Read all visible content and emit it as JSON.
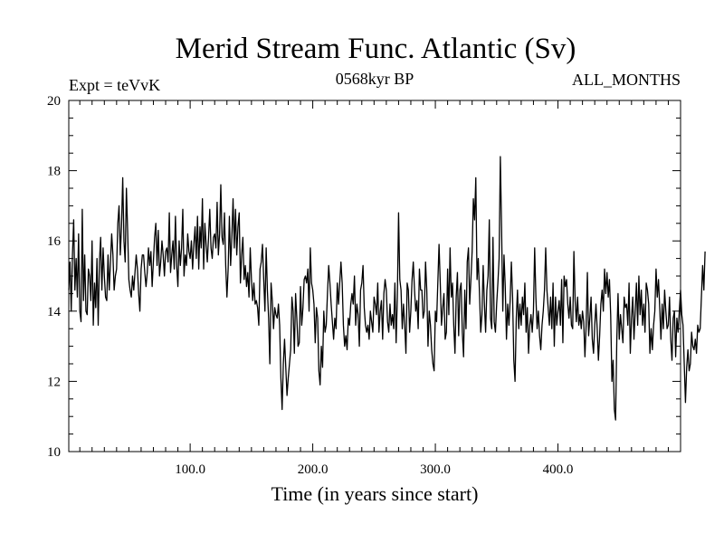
{
  "chart_data": {
    "type": "line",
    "title": "Merid Stream Func. Atlantic (Sv)",
    "header_left": "Expt = teVvK",
    "header_center": "0568kyr BP",
    "header_right": "ALL_MONTHS",
    "xlabel": "Time (in years since start)",
    "ylabel": "",
    "xlim": [
      1,
      500
    ],
    "ylim": [
      10,
      20
    ],
    "x_ticks": [
      100,
      200,
      300,
      400
    ],
    "x_tick_labels": [
      "100.0",
      "200.0",
      "300.0",
      "400.0"
    ],
    "y_ticks": [
      10,
      12,
      14,
      16,
      18,
      20
    ],
    "y_tick_labels": [
      "10",
      "12",
      "14",
      "16",
      "18",
      "20"
    ],
    "grid": false,
    "series": [
      {
        "x_start": 1,
        "x_step": 1,
        "color": "#000000",
        "values": [
          14.6,
          15.4,
          14.0,
          15.6,
          16.6,
          14.6,
          15.5,
          14.4,
          16.2,
          14.0,
          13.7,
          16.9,
          14.3,
          15.6,
          14.0,
          13.9,
          15.2,
          15.0,
          14.3,
          16.0,
          13.6,
          14.8,
          14.1,
          15.5,
          13.6,
          15.4,
          16.1,
          14.6,
          15.8,
          15.0,
          14.4,
          14.3,
          15.6,
          14.6,
          15.4,
          16.2,
          15.6,
          14.6,
          15.0,
          15.2,
          16.5,
          17.0,
          15.6,
          16.4,
          17.8,
          16.0,
          15.4,
          17.5,
          16.3,
          14.9,
          14.6,
          14.4,
          15.0,
          14.6,
          15.1,
          15.6,
          15.2,
          14.5,
          14.0,
          15.2,
          15.6,
          15.6,
          15.1,
          14.7,
          15.1,
          15.8,
          15.3,
          15.7,
          14.7,
          15.4,
          16.1,
          16.5,
          15.3,
          16.3,
          15.0,
          15.4,
          16.0,
          15.6,
          15.0,
          15.7,
          15.8,
          15.4,
          16.8,
          15.1,
          15.6,
          16.0,
          15.2,
          16.7,
          15.3,
          14.7,
          16.0,
          15.3,
          15.8,
          16.9,
          15.0,
          15.6,
          15.3,
          16.2,
          15.7,
          15.5,
          16.0,
          15.2,
          15.9,
          16.4,
          15.5,
          16.7,
          15.2,
          16.4,
          15.8,
          17.2,
          15.2,
          16.5,
          15.9,
          15.4,
          16.1,
          16.9,
          15.8,
          15.5,
          16.1,
          16.2,
          15.8,
          17.1,
          15.6,
          16.2,
          17.6,
          16.1,
          15.9,
          16.8,
          15.3,
          14.4,
          15.2,
          16.7,
          15.3,
          16.1,
          17.2,
          15.8,
          16.9,
          15.6,
          16.4,
          16.8,
          14.8,
          15.6,
          16.1,
          14.9,
          15.3,
          14.7,
          15.1,
          14.4,
          15.8,
          14.9,
          14.3,
          14.8,
          14.2,
          14.3,
          14.1,
          13.6,
          15.2,
          15.4,
          15.9,
          14.9,
          14.0,
          15.8,
          14.6,
          13.8,
          12.5,
          14.8,
          14.3,
          13.5,
          14.1,
          13.9,
          13.8,
          14.2,
          13.6,
          12.1,
          11.2,
          12.5,
          13.2,
          12.4,
          11.6,
          12.1,
          12.5,
          12.9,
          14.4,
          14.0,
          12.8,
          14.5,
          13.8,
          13.0,
          13.1,
          14.7,
          13.6,
          14.1,
          14.9,
          15.0,
          14.8,
          15.2,
          14.0,
          15.8,
          14.8,
          14.6,
          14.2,
          13.1,
          14.1,
          13.8,
          12.3,
          11.9,
          13.0,
          12.4,
          14.0,
          13.4,
          13.6,
          14.5,
          15.3,
          14.8,
          14.2,
          13.7,
          13.2,
          13.8,
          13.5,
          14.8,
          14.2,
          14.8,
          15.4,
          14.8,
          13.6,
          13.0,
          13.3,
          12.9,
          13.8,
          13.6,
          14.2,
          14.5,
          14.2,
          15.0,
          13.6,
          14.2,
          13.9,
          13.0,
          14.6,
          14.8,
          15.3,
          14.1,
          13.6,
          13.4,
          13.6,
          13.2,
          14.0,
          13.7,
          13.4,
          14.4,
          14.2,
          13.9,
          14.8,
          13.4,
          14.0,
          14.3,
          13.2,
          14.5,
          14.9,
          14.6,
          13.7,
          13.4,
          14.2,
          13.6,
          13.9,
          13.5,
          14.8,
          13.1,
          14.4,
          16.8,
          14.9,
          14.6,
          13.5,
          14.2,
          13.6,
          12.8,
          14.8,
          14.6,
          13.4,
          14.0,
          14.9,
          15.4,
          14.6,
          14.0,
          14.3,
          13.5,
          15.2,
          14.6,
          14.6,
          13.8,
          14.0,
          15.4,
          14.6,
          13.0,
          14.0,
          13.6,
          12.9,
          12.5,
          12.3,
          14.0,
          13.7,
          14.8,
          15.9,
          14.8,
          13.6,
          14.1,
          14.5,
          13.2,
          13.4,
          15.2,
          13.9,
          15.8,
          14.4,
          14.8,
          13.6,
          12.8,
          14.4,
          15.1,
          13.3,
          14.6,
          14.8,
          13.4,
          12.7,
          14.6,
          13.5,
          15.4,
          15.8,
          14.2,
          14.9,
          15.7,
          17.2,
          16.6,
          17.8,
          14.9,
          15.5,
          14.5,
          13.4,
          13.9,
          15.3,
          14.2,
          13.4,
          14.6,
          15.0,
          16.6,
          13.8,
          13.5,
          16.1,
          13.7,
          13.4,
          14.2,
          14.8,
          15.5,
          18.4,
          16.4,
          14.0,
          15.6,
          14.7,
          13.2,
          14.2,
          13.6,
          14.3,
          15.4,
          14.4,
          12.6,
          12.0,
          13.8,
          14.6,
          13.5,
          14.2,
          13.6,
          14.4,
          13.9,
          14.8,
          13.4,
          14.1,
          12.8,
          13.6,
          13.9,
          13.4,
          14.0,
          15.8,
          14.4,
          13.5,
          14.0,
          13.3,
          12.9,
          13.6,
          14.0,
          14.6,
          15.8,
          14.6,
          14.1,
          13.6,
          14.4,
          13.5,
          14.8,
          13.0,
          14.4,
          13.6,
          14.0,
          14.3,
          13.6,
          14.9,
          13.1,
          15.0,
          14.7,
          14.9,
          14.2,
          13.8,
          14.4,
          13.6,
          13.5,
          15.7,
          14.3,
          13.7,
          14.4,
          13.6,
          13.9,
          13.5,
          14.0,
          13.7,
          12.7,
          13.6,
          15.1,
          13.3,
          13.8,
          14.4,
          13.2,
          12.8,
          13.6,
          14.2,
          13.5,
          12.6,
          13.3,
          14.2,
          14.6,
          14.0,
          15.2,
          14.5,
          15.1,
          14.4,
          14.9,
          13.9,
          12.0,
          12.6,
          11.2,
          10.9,
          13.2,
          14.5,
          13.2,
          13.9,
          13.5,
          13.1,
          14.4,
          14.1,
          14.2,
          13.6,
          14.8,
          12.8,
          13.8,
          14.4,
          13.2,
          14.0,
          14.8,
          13.6,
          15.0,
          13.9,
          14.6,
          13.6,
          14.2,
          13.4,
          14.8,
          14.6,
          14.2,
          12.8,
          13.5,
          12.9,
          13.6,
          14.0,
          15.2,
          14.4,
          14.9,
          14.1,
          13.2,
          14.2,
          13.5,
          14.6,
          14.0,
          13.5,
          13.6,
          14.4,
          13.2,
          12.6,
          13.8,
          14.0,
          12.7,
          13.8,
          13.4,
          14.0,
          14.6,
          13.9,
          13.6,
          12.5,
          11.4,
          12.4,
          12.9,
          12.3,
          12.5,
          13.4,
          13.0,
          12.9,
          13.2,
          12.8,
          13.6,
          13.4,
          13.5,
          14.4,
          15.3,
          14.6,
          15.7
        ]
      }
    ]
  }
}
